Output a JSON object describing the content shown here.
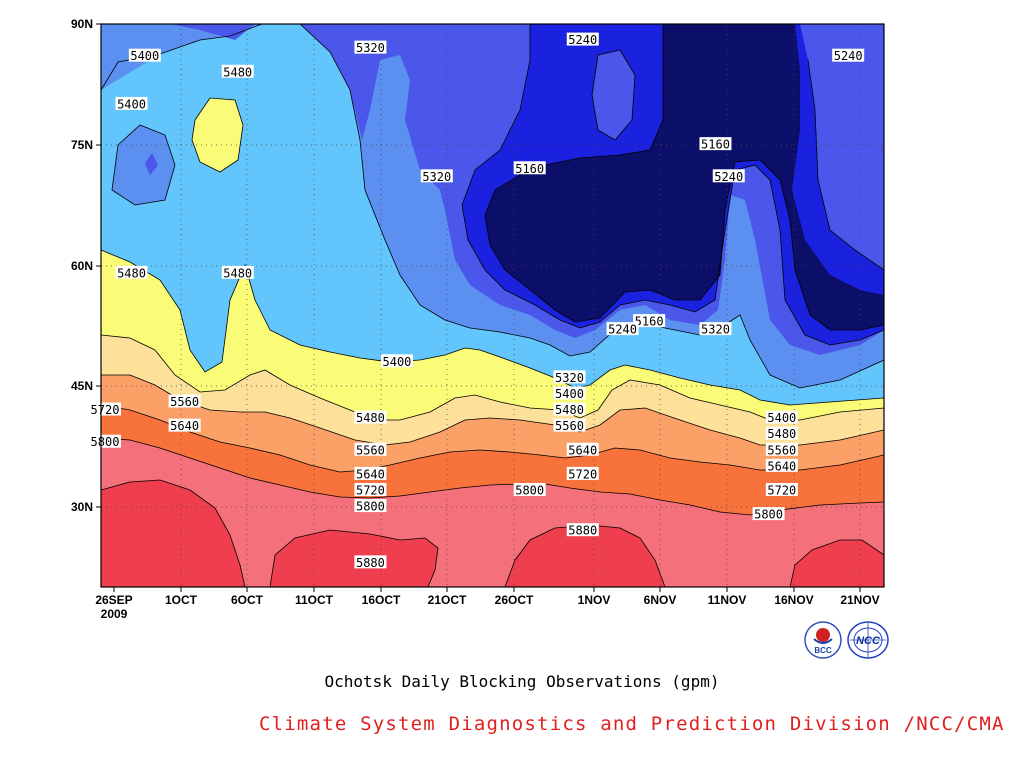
{
  "chart_data": {
    "type": "heatmap",
    "title": "Ochotsk Daily Blocking Observations (gpm)",
    "xlabel": "",
    "ylabel": "",
    "x_ticks": [
      "26SEP\n2009",
      "1OCT",
      "6OCT",
      "11OCT",
      "16OCT",
      "21OCT",
      "26OCT",
      "1NOV",
      "6NOV",
      "11NOV",
      "16NOV",
      "21NOV"
    ],
    "y_ticks": [
      "30N",
      "45N",
      "60N",
      "75N",
      "90N"
    ],
    "ylim": [
      20,
      90
    ],
    "xlim": [
      "2009-09-26",
      "2009-11-24"
    ],
    "grid": true,
    "contour_levels": [
      5160,
      5240,
      5320,
      5400,
      5480,
      5560,
      5640,
      5720,
      5800,
      5880
    ],
    "fill_colors": {
      "below_5160": "#0c0f69",
      "5160_5240": "#1a22e0",
      "5240_5320": "#4a57ea",
      "5320_5400": "#5b8ff0",
      "5400_5480": "#62c5fb",
      "5480_5560": "#fafc78",
      "5560_5640": "#fde09a",
      "5640_5720": "#fba167",
      "5720_5800": "#f8723c",
      "5800_5880": "#f4707a",
      "above_5880": "#ef3e4e"
    },
    "labels": [
      {
        "text": "5400",
        "date": "2009-09-29",
        "lat": 86
      },
      {
        "text": "5400",
        "date": "2009-09-28",
        "lat": 80
      },
      {
        "text": "5480",
        "date": "2009-10-06",
        "lat": 84
      },
      {
        "text": "5320",
        "date": "2009-10-16",
        "lat": 87
      },
      {
        "text": "5240",
        "date": "2009-11-01",
        "lat": 88
      },
      {
        "text": "5240",
        "date": "2009-11-21",
        "lat": 86
      },
      {
        "text": "5160",
        "date": "2009-11-11",
        "lat": 75
      },
      {
        "text": "5160",
        "date": "2009-10-28",
        "lat": 72
      },
      {
        "text": "5320",
        "date": "2009-10-21",
        "lat": 71
      },
      {
        "text": "5240",
        "date": "2009-11-12",
        "lat": 71
      },
      {
        "text": "5480",
        "date": "2009-09-28",
        "lat": 59
      },
      {
        "text": "5480",
        "date": "2009-10-06",
        "lat": 59
      },
      {
        "text": "5160",
        "date": "2009-11-06",
        "lat": 53
      },
      {
        "text": "5240",
        "date": "2009-11-04",
        "lat": 52
      },
      {
        "text": "5320",
        "date": "2009-11-11",
        "lat": 52
      },
      {
        "text": "5400",
        "date": "2009-10-18",
        "lat": 48
      },
      {
        "text": "5320",
        "date": "2009-10-31",
        "lat": 46
      },
      {
        "text": "5400",
        "date": "2009-10-31",
        "lat": 44
      },
      {
        "text": "5480",
        "date": "2009-10-31",
        "lat": 42
      },
      {
        "text": "5560",
        "date": "2009-10-31",
        "lat": 40
      },
      {
        "text": "5560",
        "date": "2009-10-02",
        "lat": 43
      },
      {
        "text": "5480",
        "date": "2009-10-16",
        "lat": 41
      },
      {
        "text": "5640",
        "date": "2009-10-02",
        "lat": 40
      },
      {
        "text": "5720",
        "date": "2009-09-26",
        "lat": 42
      },
      {
        "text": "5800",
        "date": "2009-09-26",
        "lat": 38
      },
      {
        "text": "5560",
        "date": "2009-10-16",
        "lat": 37
      },
      {
        "text": "5640",
        "date": "2009-11-01",
        "lat": 37
      },
      {
        "text": "5640",
        "date": "2009-10-16",
        "lat": 34
      },
      {
        "text": "5720",
        "date": "2009-11-01",
        "lat": 34
      },
      {
        "text": "5720",
        "date": "2009-10-16",
        "lat": 32
      },
      {
        "text": "5800",
        "date": "2009-10-28",
        "lat": 32
      },
      {
        "text": "5800",
        "date": "2009-10-16",
        "lat": 30
      },
      {
        "text": "5880",
        "date": "2009-11-01",
        "lat": 27
      },
      {
        "text": "5880",
        "date": "2009-10-16",
        "lat": 23
      },
      {
        "text": "5400",
        "date": "2009-11-16",
        "lat": 41
      },
      {
        "text": "5480",
        "date": "2009-11-16",
        "lat": 39
      },
      {
        "text": "5560",
        "date": "2009-11-16",
        "lat": 37
      },
      {
        "text": "5640",
        "date": "2009-11-16",
        "lat": 35
      },
      {
        "text": "5720",
        "date": "2009-11-16",
        "lat": 32
      },
      {
        "text": "5800",
        "date": "2009-11-15",
        "lat": 29
      }
    ]
  },
  "footer": {
    "credit": "Climate System Diagnostics and Prediction Division /NCC/CMA",
    "credit_color": "#e02020",
    "logo_left_text": "BCC",
    "logo_right_text": "NCC"
  }
}
